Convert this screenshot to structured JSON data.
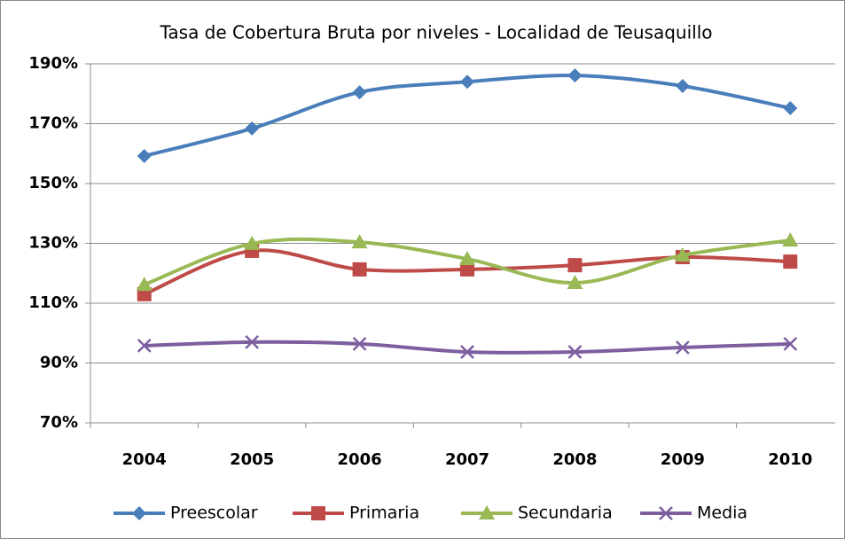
{
  "chart_data": {
    "type": "line",
    "title": "Tasa de Cobertura Bruta por niveles - Localidad de Teusaquillo",
    "categories": [
      "2004",
      "2005",
      "2006",
      "2007",
      "2008",
      "2009",
      "2010"
    ],
    "series": [
      {
        "name": "Preescolar",
        "color": "#4a7ebb",
        "marker": "diamond",
        "values": [
          159.2,
          168.4,
          180.5,
          184,
          186.1,
          182.6,
          175.2
        ]
      },
      {
        "name": "Primaria",
        "color": "#be4b48",
        "marker": "square",
        "values": [
          113,
          127.5,
          121.3,
          121.3,
          122.7,
          125.4,
          123.9
        ]
      },
      {
        "name": "Secundaria",
        "color": "#98b954",
        "marker": "triangle",
        "values": [
          116.2,
          129.9,
          130.4,
          124.8,
          116.8,
          126,
          131
        ]
      },
      {
        "name": "Media",
        "color": "#7d5fa0",
        "marker": "x",
        "values": [
          95.8,
          97,
          96.4,
          93.7,
          93.7,
          95.2,
          96.4
        ]
      }
    ],
    "ylim": [
      70,
      190
    ],
    "yticks": [
      {
        "value": 70,
        "label": "70%"
      },
      {
        "value": 90,
        "label": "90%"
      },
      {
        "value": 110,
        "label": "110%"
      },
      {
        "value": 130,
        "label": "130%"
      },
      {
        "value": 150,
        "label": "150%"
      },
      {
        "value": 170,
        "label": "170%"
      },
      {
        "value": 190,
        "label": "190%"
      }
    ],
    "grid": true,
    "smooth": true,
    "legend": "bottom"
  }
}
